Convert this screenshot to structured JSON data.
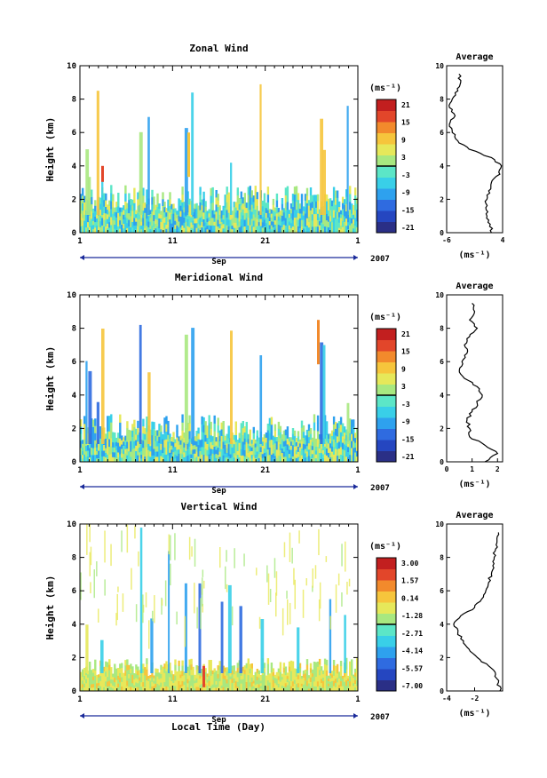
{
  "colors": {
    "bar": [
      "#2a2f86",
      "#2546c0",
      "#2f6be0",
      "#2ea1ee",
      "#39cfe8",
      "#5ce6c7",
      "#a8e880",
      "#e6e85a",
      "#f6c53c",
      "#f28a2c",
      "#e2462a",
      "#c21f1f"
    ],
    "profile": "#000000",
    "fill_green": "#7ee68c",
    "fill_cyan": "#44d4ee",
    "fill_yellow": "#e8e85a"
  },
  "shared": {
    "x_ticks": [
      "1",
      "11",
      "21",
      "1"
    ],
    "month_label": "Sep",
    "year_label": "2007",
    "y_ticks": [
      "0",
      "2",
      "4",
      "6",
      "8",
      "10"
    ],
    "ylabel": "Height (km)",
    "cb_title": "(ms⁻¹)",
    "avg_xlabel": "(ms⁻¹)",
    "avg_title": "Average",
    "xlabel": "Local Time (Day)"
  },
  "chart_data": [
    {
      "type": "heatmap",
      "title": "Zonal Wind",
      "xlabel": "",
      "ylabel": "Height (km)",
      "ylim": [
        0,
        10
      ],
      "colorbar_ticks": [
        "21",
        "15",
        "9",
        "3",
        "-3",
        "-9",
        "-15",
        "-21"
      ],
      "colorbar_range": [
        -24,
        24
      ],
      "profile": {
        "title": "Average",
        "xlim": [
          -6,
          4
        ],
        "x_ticks": [
          "-6",
          "4"
        ],
        "heights": [
          0,
          0.5,
          1,
          1.5,
          2,
          2.5,
          3,
          3.5,
          4,
          4.5,
          5,
          5.5,
          6,
          6.5,
          7,
          7.5,
          8,
          8.5,
          9,
          9.5
        ],
        "values": [
          2,
          1.8,
          1.2,
          1,
          1.2,
          1.5,
          2,
          3.5,
          3.8,
          2,
          -2,
          -4,
          -5,
          -5.5,
          -4.5,
          -5.5,
          -5,
          -4,
          -3.5,
          -3.8
        ]
      }
    },
    {
      "type": "heatmap",
      "title": "Meridional Wind",
      "xlabel": "",
      "ylabel": "Height (km)",
      "ylim": [
        0,
        10
      ],
      "colorbar_ticks": [
        "21",
        "15",
        "9",
        "3",
        "-3",
        "-9",
        "-15",
        "-21"
      ],
      "colorbar_range": [
        -24,
        24
      ],
      "profile": {
        "title": "Average",
        "xlim": [
          0,
          2.2
        ],
        "x_ticks": [
          "0",
          "1",
          "2"
        ],
        "heights": [
          0,
          0.5,
          1,
          1.5,
          2,
          2.5,
          3,
          3.5,
          4,
          4.5,
          5,
          5.5,
          6,
          6.5,
          7,
          7.5,
          8,
          8.5,
          9,
          9.5
        ],
        "values": [
          1.5,
          2.0,
          1.5,
          0.9,
          0.9,
          0.8,
          1.0,
          1.2,
          1.4,
          1.2,
          0.7,
          0.5,
          0.6,
          0.8,
          0.7,
          0.9,
          1.2,
          0.9,
          1.1,
          1.0
        ]
      }
    },
    {
      "type": "heatmap",
      "title": "Vertical Wind",
      "xlabel": "Local Time (Day)",
      "ylabel": "Height (km)",
      "ylim": [
        0,
        10
      ],
      "colorbar_ticks": [
        "3.00",
        "1.57",
        "0.14",
        "-1.28",
        "-2.71",
        "-4.14",
        "-5.57",
        "-7.00"
      ],
      "colorbar_range": [
        -8,
        4
      ],
      "profile": {
        "title": "Average",
        "xlim": [
          -4,
          0
        ],
        "x_ticks": [
          "-4",
          "-2"
        ],
        "heights": [
          0,
          0.5,
          1,
          1.5,
          2,
          2.5,
          3,
          3.5,
          4,
          4.5,
          5,
          5.5,
          6,
          6.5,
          7,
          7.5,
          8,
          8.5,
          9,
          9.5
        ],
        "values": [
          -0.2,
          -0.3,
          -0.5,
          -1.0,
          -1.8,
          -2.4,
          -2.8,
          -3.2,
          -3.5,
          -3.0,
          -2.0,
          -1.5,
          -1.2,
          -1.0,
          -0.8,
          -0.7,
          -0.6,
          -0.5,
          -0.4,
          -0.3
        ]
      }
    }
  ]
}
